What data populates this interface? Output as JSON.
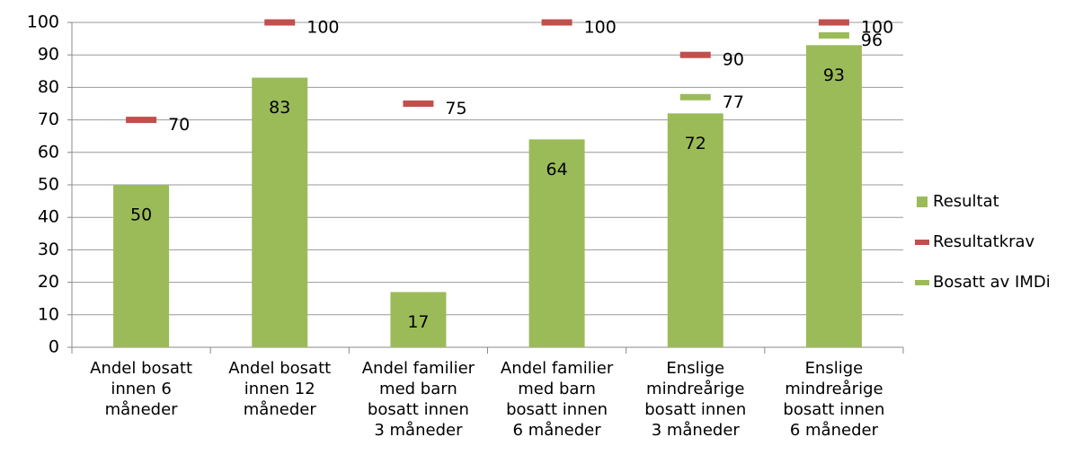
{
  "chart_data": {
    "type": "bar",
    "categories": [
      "Andel bosatt\ninnen 6\nmåneder",
      "Andel bosatt\ninnen 12\nmåneder",
      "Andel familier\nmed barn\nbosatt innen\n3 måneder",
      "Andel familier\nmed barn\nbosatt innen\n6 måneder",
      "Enslige\nmindreårige\nbosatt innen\n3 måneder",
      "Enslige\nmindreårige\nbosatt innen\n6 måneder"
    ],
    "series": [
      {
        "name": "Resultat",
        "color": "#9bbb59",
        "kind": "bar",
        "values": [
          50,
          83,
          17,
          64,
          72,
          93
        ]
      },
      {
        "name": "Resultatkrav",
        "color": "#c0504d",
        "kind": "dash",
        "values": [
          70,
          100,
          75,
          100,
          90,
          100
        ]
      },
      {
        "name": "Bosatt av IMDi",
        "color": "#9bbb59",
        "kind": "dash",
        "values": [
          null,
          null,
          null,
          null,
          77,
          96
        ]
      }
    ],
    "ylim": [
      0,
      100
    ],
    "yticks": [
      0,
      10,
      20,
      30,
      40,
      50,
      60,
      70,
      80,
      90,
      100
    ],
    "grid": true,
    "legend": "right"
  }
}
